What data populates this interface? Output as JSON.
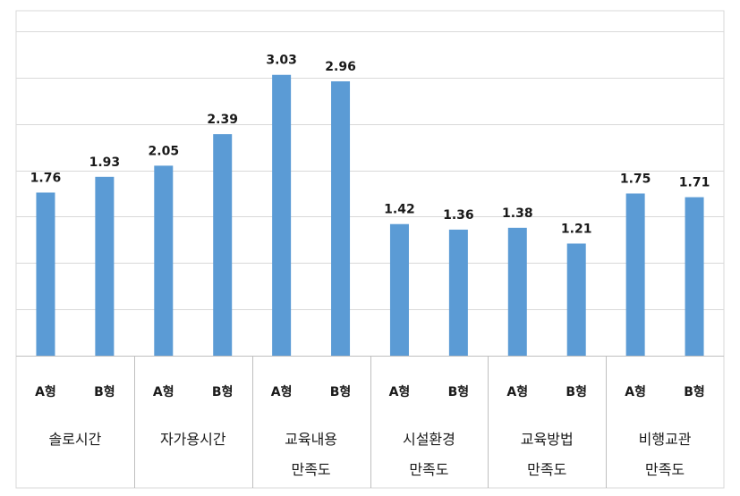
{
  "chart_data": {
    "type": "bar",
    "title": "",
    "xlabel": "",
    "ylabel": "",
    "ylim": [
      0,
      3.5
    ],
    "grid": true,
    "legend": "none",
    "bar_color": "#5b9bd5",
    "grid_color": "#d9d9d9",
    "groups": [
      {
        "label": [
          "솔로시간"
        ],
        "bars": [
          {
            "sub": "A형",
            "value": 1.76,
            "label": "1.76"
          },
          {
            "sub": "B형",
            "value": 1.93,
            "label": "1.93"
          }
        ]
      },
      {
        "label": [
          "자가용시간"
        ],
        "bars": [
          {
            "sub": "A형",
            "value": 2.05,
            "label": "2.05"
          },
          {
            "sub": "B형",
            "value": 2.39,
            "label": "2.39"
          }
        ]
      },
      {
        "label": [
          "교육내용",
          "만족도"
        ],
        "bars": [
          {
            "sub": "A형",
            "value": 3.03,
            "label": "3.03"
          },
          {
            "sub": "B형",
            "value": 2.96,
            "label": "2.96"
          }
        ]
      },
      {
        "label": [
          "시설환경",
          "만족도"
        ],
        "bars": [
          {
            "sub": "A형",
            "value": 1.42,
            "label": "1.42"
          },
          {
            "sub": "B형",
            "value": 1.36,
            "label": "1.36"
          }
        ]
      },
      {
        "label": [
          "교육방법",
          "만족도"
        ],
        "bars": [
          {
            "sub": "A형",
            "value": 1.38,
            "label": "1.38"
          },
          {
            "sub": "B형",
            "value": 1.21,
            "label": "1.21"
          }
        ]
      },
      {
        "label": [
          "비행교관",
          "만족도"
        ],
        "bars": [
          {
            "sub": "A형",
            "value": 1.75,
            "label": "1.75"
          },
          {
            "sub": "B형",
            "value": 1.71,
            "label": "1.71"
          }
        ]
      }
    ]
  }
}
